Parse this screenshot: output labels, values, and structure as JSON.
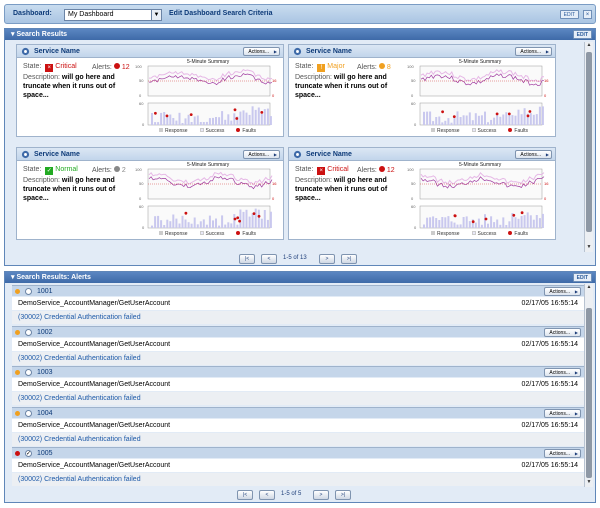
{
  "dashboard": {
    "label": "Dashboard:",
    "selected": "My Dashboard",
    "edit_criteria": "Edit Dashboard Search Criteria",
    "edit_label": "EDIT",
    "close_glyph": "×"
  },
  "search_results": {
    "title": "Search Results",
    "edit_label": "EDIT",
    "pager_text": "1-5 of 13",
    "cards": [
      {
        "title": "Service Name",
        "actions": "Actions...",
        "state_label": "State:",
        "state": "Critical",
        "state_color": "#cc1111",
        "state_glyph": "×",
        "alerts_label": "Alerts:",
        "alerts": "12",
        "alert_color": "#cc1111",
        "desc_label": "Description:",
        "desc_bold": "will go here and truncate when it runs out of",
        "desc_rest": "space...",
        "chart_title": "5-Minute Summary"
      },
      {
        "title": "Service Name",
        "actions": "Actions...",
        "state_label": "State:",
        "state": "Major",
        "state_color": "#f0a020",
        "state_glyph": "!",
        "alerts_label": "Alerts:",
        "alerts": "8",
        "alert_color": "#f0a020",
        "desc_label": "Description:",
        "desc_bold": "will go here and truncate when it runs out of",
        "desc_rest": "space...",
        "chart_title": "5-Minute Summary"
      },
      {
        "title": "Service Name",
        "actions": "Actions...",
        "state_label": "State:",
        "state": "Normal",
        "state_color": "#22aa22",
        "state_glyph": "✓",
        "alerts_label": "Alerts:",
        "alerts": "2",
        "alert_color": "#888888",
        "desc_label": "Description:",
        "desc_bold": "will go here and truncate when it runs out of",
        "desc_rest": "space...",
        "chart_title": "5-Minute Summary"
      },
      {
        "title": "Service Name",
        "actions": "Actions...",
        "state_label": "State:",
        "state": "Critical",
        "state_color": "#cc1111",
        "state_glyph": "×",
        "alerts_label": "Alerts:",
        "alerts": "12",
        "alert_color": "#cc1111",
        "desc_label": "Description:",
        "desc_bold": "will go here and truncate when it runs out of",
        "desc_rest": "space...",
        "chart_title": "5-Minute Summary"
      }
    ],
    "chart_ticks": {
      "top_left": "100",
      "top_mid": "50",
      "bot_left_top": "60",
      "zero": "0",
      "right_top": "16",
      "right_zero": "0"
    },
    "legend": {
      "response": "Response",
      "success": "Success",
      "faults": "Faults"
    }
  },
  "alerts_panel": {
    "title": "Search Results: Alerts",
    "edit_label": "EDIT",
    "pager_text": "1-5 of 5",
    "rows": [
      {
        "id": "1001",
        "severity_color": "#f0a020",
        "checked": false,
        "service": "DemoService_AccountManager/GetUserAccount",
        "timestamp": "02/17/05 16:55:14",
        "message": "(30002) Credential Authentication failed",
        "actions": "Actions..."
      },
      {
        "id": "1002",
        "severity_color": "#f0a020",
        "checked": false,
        "service": "DemoService_AccountManager/GetUserAccount",
        "timestamp": "02/17/05 16:55:14",
        "message": "(30002) Credential Authentication failed",
        "actions": "Actions..."
      },
      {
        "id": "1003",
        "severity_color": "#f0a020",
        "checked": false,
        "service": "DemoService_AccountManager/GetUserAccount",
        "timestamp": "02/17/05 16:55:14",
        "message": "(30002) Credential Authentication failed",
        "actions": "Actions..."
      },
      {
        "id": "1004",
        "severity_color": "#f0a020",
        "checked": false,
        "service": "DemoService_AccountManager/GetUserAccount",
        "timestamp": "02/17/05 16:55:14",
        "message": "(30002) Credential Authentication failed",
        "actions": "Actions..."
      },
      {
        "id": "1005",
        "severity_color": "#cc1111",
        "checked": true,
        "service": "DemoService_AccountManager/GetUserAccount",
        "timestamp": "02/17/05 16:55:14",
        "message": "(30002) Credential Authentication failed",
        "actions": "Actions..."
      }
    ]
  },
  "pager_buttons": {
    "first": "|<",
    "prev": "<",
    "next": ">",
    "last": ">|"
  }
}
